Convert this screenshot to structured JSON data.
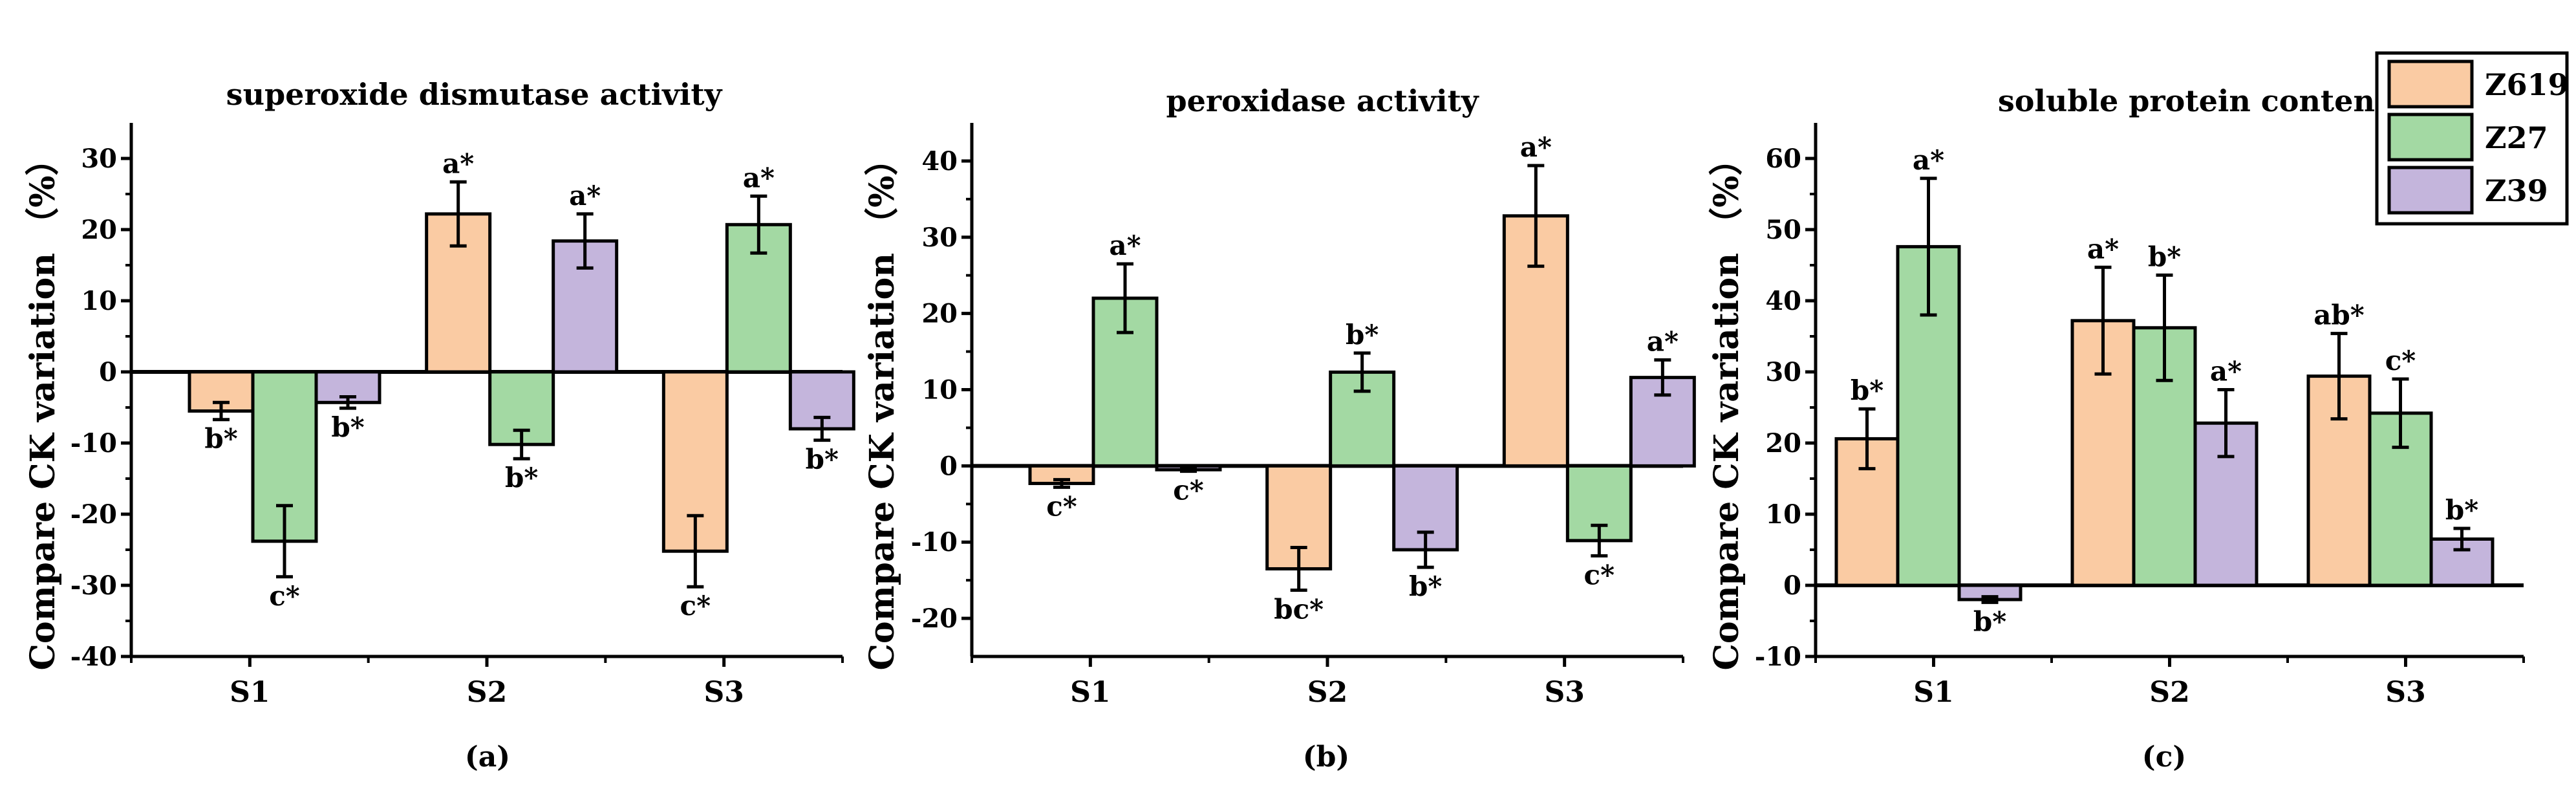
{
  "legend": [
    {
      "name": "Z619",
      "color": "#FACBA3"
    },
    {
      "name": "Z27",
      "color": "#A3D9A3"
    },
    {
      "name": "Z39",
      "color": "#C4B5DC"
    }
  ],
  "chart_data": [
    {
      "type": "bar",
      "panel_label": "(a)",
      "title": "superoxide dismutase activity",
      "ylabel": "Compare CK variation （%）",
      "xlabel": "",
      "ylim": [
        -40,
        35
      ],
      "yticks": [
        -40,
        -30,
        -20,
        -10,
        0,
        10,
        20,
        30
      ],
      "categories": [
        "S1",
        "S2",
        "S3"
      ],
      "series": [
        {
          "name": "Z619",
          "values": [
            -5.5,
            22.2,
            -25.2
          ],
          "errors": [
            1.2,
            4.5,
            5.0
          ],
          "labels": [
            "b*",
            "a*",
            "c*"
          ]
        },
        {
          "name": "Z27",
          "values": [
            -23.8,
            -10.2,
            20.7
          ],
          "errors": [
            5.0,
            2.0,
            4.0
          ],
          "labels": [
            "c*",
            "b*",
            "a*"
          ]
        },
        {
          "name": "Z39",
          "values": [
            -4.3,
            18.4,
            -8.0
          ],
          "errors": [
            0.8,
            3.8,
            1.6
          ],
          "labels": [
            "b*",
            "a*",
            "b*"
          ]
        }
      ]
    },
    {
      "type": "bar",
      "panel_label": "(b)",
      "title": "peroxidase activity",
      "ylabel": "Compare CK variation （%）",
      "xlabel": "",
      "ylim": [
        -25,
        45
      ],
      "yticks": [
        -20,
        -10,
        0,
        10,
        20,
        30,
        40
      ],
      "categories": [
        "S1",
        "S2",
        "S3"
      ],
      "series": [
        {
          "name": "Z619",
          "values": [
            -2.3,
            -13.5,
            32.8
          ],
          "errors": [
            0.5,
            2.8,
            6.6
          ],
          "labels": [
            "c*",
            "bc*",
            "a*"
          ]
        },
        {
          "name": "Z27",
          "values": [
            22.0,
            12.3,
            -9.8
          ],
          "errors": [
            4.5,
            2.5,
            2.0
          ],
          "labels": [
            "a*",
            "b*",
            "c*"
          ]
        },
        {
          "name": "Z39",
          "values": [
            -0.5,
            -11.0,
            11.6
          ],
          "errors": [
            0.2,
            2.3,
            2.3
          ],
          "labels": [
            "c*",
            "b*",
            "a*"
          ]
        }
      ]
    },
    {
      "type": "bar",
      "panel_label": "(c)",
      "title": "soluble protein content",
      "ylabel": "Compare CK variation （%）",
      "xlabel": "",
      "ylim": [
        -10,
        65
      ],
      "yticks": [
        -10,
        0,
        10,
        20,
        30,
        40,
        50,
        60
      ],
      "categories": [
        "S1",
        "S2",
        "S3"
      ],
      "series": [
        {
          "name": "Z619",
          "values": [
            20.6,
            37.2,
            29.4
          ],
          "errors": [
            4.2,
            7.5,
            6.0
          ],
          "labels": [
            "b*",
            "a*",
            "ab*"
          ]
        },
        {
          "name": "Z27",
          "values": [
            47.6,
            36.2,
            24.2
          ],
          "errors": [
            9.6,
            7.4,
            4.8
          ],
          "labels": [
            "a*",
            "b*",
            "c*"
          ]
        },
        {
          "name": "Z39",
          "values": [
            -2.0,
            22.8,
            6.5
          ],
          "errors": [
            0.4,
            4.7,
            1.5
          ],
          "labels": [
            "b*",
            "a*",
            "b*"
          ]
        }
      ]
    }
  ]
}
